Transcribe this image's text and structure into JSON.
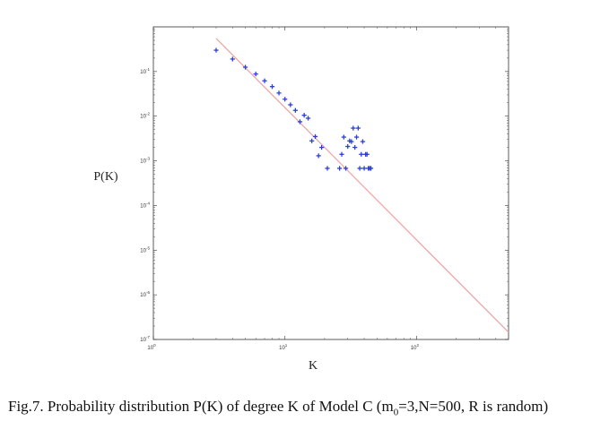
{
  "chart_data": {
    "type": "scatter",
    "xscale": "log",
    "yscale": "log",
    "xlim": [
      1,
      500
    ],
    "ylim": [
      1e-07,
      1
    ],
    "xlabel": "K",
    "ylabel": "P(K)",
    "xticks": [
      {
        "value": 1,
        "base": "10",
        "exp": "0"
      },
      {
        "value": 10,
        "base": "10",
        "exp": "1"
      },
      {
        "value": 100,
        "base": "10",
        "exp": "2"
      }
    ],
    "yticks": [
      {
        "value": 0.1,
        "base": "10",
        "exp": "-1"
      },
      {
        "value": 0.01,
        "base": "10",
        "exp": "-2"
      },
      {
        "value": 0.001,
        "base": "10",
        "exp": "-3"
      },
      {
        "value": 0.0001,
        "base": "10",
        "exp": "-4"
      },
      {
        "value": 1e-05,
        "base": "10",
        "exp": "-5"
      },
      {
        "value": 1e-06,
        "base": "10",
        "exp": "-6"
      },
      {
        "value": 1e-07,
        "base": "10",
        "exp": "-7"
      }
    ],
    "points": [
      {
        "x": 3,
        "y": 0.3
      },
      {
        "x": 4,
        "y": 0.19
      },
      {
        "x": 5,
        "y": 0.125
      },
      {
        "x": 6,
        "y": 0.088
      },
      {
        "x": 7,
        "y": 0.062
      },
      {
        "x": 8,
        "y": 0.046
      },
      {
        "x": 9,
        "y": 0.033
      },
      {
        "x": 10,
        "y": 0.024
      },
      {
        "x": 11,
        "y": 0.018
      },
      {
        "x": 12,
        "y": 0.0135
      },
      {
        "x": 13,
        "y": 0.0075
      },
      {
        "x": 14,
        "y": 0.0105
      },
      {
        "x": 15,
        "y": 0.009
      },
      {
        "x": 16,
        "y": 0.0028
      },
      {
        "x": 17,
        "y": 0.0035
      },
      {
        "x": 18,
        "y": 0.0013
      },
      {
        "x": 19,
        "y": 0.002
      },
      {
        "x": 21,
        "y": 0.00068
      },
      {
        "x": 26,
        "y": 0.00068
      },
      {
        "x": 27,
        "y": 0.0014
      },
      {
        "x": 28,
        "y": 0.0034
      },
      {
        "x": 29,
        "y": 0.00068
      },
      {
        "x": 30,
        "y": 0.0021
      },
      {
        "x": 31,
        "y": 0.0028
      },
      {
        "x": 32,
        "y": 0.0027
      },
      {
        "x": 33,
        "y": 0.0054
      },
      {
        "x": 34,
        "y": 0.002
      },
      {
        "x": 35,
        "y": 0.0034
      },
      {
        "x": 36,
        "y": 0.0054
      },
      {
        "x": 37,
        "y": 0.00068
      },
      {
        "x": 38,
        "y": 0.0014
      },
      {
        "x": 39,
        "y": 0.0027
      },
      {
        "x": 40,
        "y": 0.00068
      },
      {
        "x": 41,
        "y": 0.0014
      },
      {
        "x": 42,
        "y": 0.0014
      },
      {
        "x": 43,
        "y": 0.00068
      },
      {
        "x": 44,
        "y": 0.00068
      },
      {
        "x": 45,
        "y": 0.00068
      }
    ],
    "fit_line": {
      "x": [
        3,
        500
      ],
      "y": [
        0.55,
        1.45e-07
      ]
    },
    "marker_color": "#2b3fd6",
    "line_color": "#f0a0a0",
    "grid": false
  },
  "caption": {
    "prefix": "Fig.7. Probability distribution P(K) of degree K of Model C (m",
    "subscript": "0",
    "suffix": "=3,N=500, R is random)"
  }
}
